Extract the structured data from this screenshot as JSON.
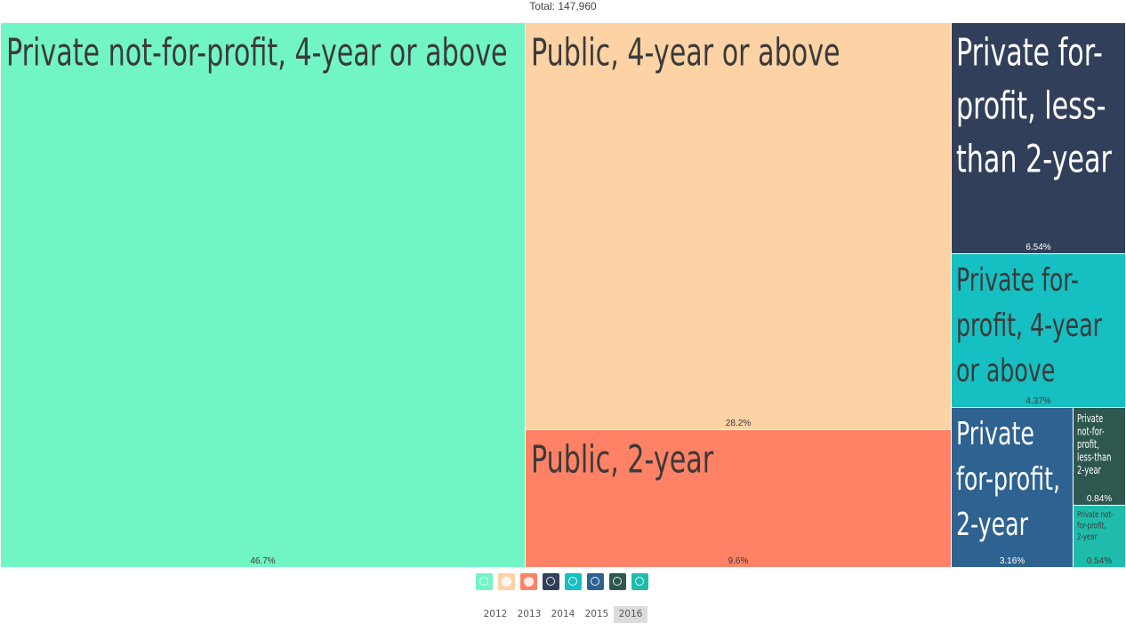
{
  "header": {
    "total": "Total: 147,960"
  },
  "chart_data": {
    "type": "treemap",
    "total": 147960,
    "items": [
      {
        "label": "Private not-for-profit, 4-year or above",
        "percent": 46.7,
        "percent_label": "46.7%",
        "color": "#72f5c4",
        "text_color": "#3a3a3a"
      },
      {
        "label": "Public, 4-year or above",
        "percent": 28.2,
        "percent_label": "28.2%",
        "color": "#fdd2a5",
        "text_color": "#3a3a3a"
      },
      {
        "label": "Public, 2-year",
        "percent": 9.6,
        "percent_label": "9.6%",
        "color": "#ff8266",
        "text_color": "#3a3a3a"
      },
      {
        "label": "Private for-profit, less-than 2-year",
        "percent": 6.54,
        "percent_label": "6.54%",
        "color": "#323f5a",
        "text_color": "#ffffff"
      },
      {
        "label": "Private for-profit, 4-year or above",
        "percent": 4.37,
        "percent_label": "4.37%",
        "color": "#16bfc1",
        "text_color": "#3a3a3a"
      },
      {
        "label": "Private for-profit, 2-year",
        "percent": 3.16,
        "percent_label": "3.16%",
        "color": "#2e6290",
        "text_color": "#ffffff"
      },
      {
        "label": "Private not-for-profit, less-than 2-year",
        "percent": 0.84,
        "percent_label": "0.84%",
        "color": "#2e5750",
        "text_color": "#ffffff"
      },
      {
        "label": "Private not-for-profit, 2-year",
        "percent": 0.54,
        "percent_label": "0.54%",
        "color": "#1fbcab",
        "text_color": "#3a3a3a"
      }
    ]
  },
  "legend_icons": [
    {
      "name": "private-nfp-4yr-icon",
      "color": "#72f5c4",
      "glyph": "globe"
    },
    {
      "name": "public-4yr-icon",
      "color": "#fdd2a5",
      "glyph": "dot"
    },
    {
      "name": "public-2yr-icon",
      "color": "#ff8266",
      "glyph": "dot"
    },
    {
      "name": "private-fp-lt2yr-icon",
      "color": "#323f5a",
      "glyph": "globe"
    },
    {
      "name": "private-fp-4yr-icon",
      "color": "#16bfc1",
      "glyph": "globe"
    },
    {
      "name": "private-fp-2yr-icon",
      "color": "#2e6290",
      "glyph": "globe"
    },
    {
      "name": "private-nfp-lt2yr-icon",
      "color": "#2e5750",
      "glyph": "globe"
    },
    {
      "name": "private-nfp-2yr-icon",
      "color": "#1fbcab",
      "glyph": "globe"
    }
  ],
  "years": [
    "2012",
    "2013",
    "2014",
    "2015",
    "2016"
  ],
  "selected_year": "2016"
}
